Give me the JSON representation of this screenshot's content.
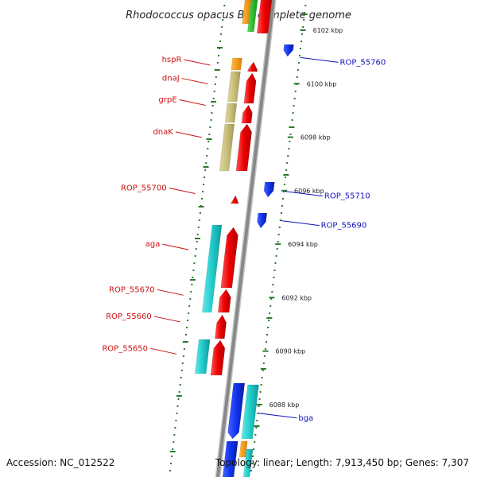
{
  "title": "Rhodococcus opacus B4, complete genome",
  "footer": {
    "accession": "Accession: NC_012522",
    "summary": "Topology: linear; Length: 7,913,450 bp; Genes: 7,307"
  },
  "ticks": [
    {
      "label": "6102 kbp",
      "kbp": 6102
    },
    {
      "label": "6100 kbp",
      "kbp": 6100
    },
    {
      "label": "6098 kbp",
      "kbp": 6098
    },
    {
      "label": "6096 kbp",
      "kbp": 6096
    },
    {
      "label": "6094 kbp",
      "kbp": 6094
    },
    {
      "label": "6092 kbp",
      "kbp": 6092
    },
    {
      "label": "6090 kbp",
      "kbp": 6090
    },
    {
      "label": "6088 kbp",
      "kbp": 6088
    }
  ],
  "left_labels": [
    {
      "name": "hspR",
      "kbp": 6100.9
    },
    {
      "name": "dnaJ",
      "kbp": 6100.2
    },
    {
      "name": "grpE",
      "kbp": 6099.4
    },
    {
      "name": "dnaK",
      "kbp": 6098.2
    },
    {
      "name": "ROP_55700",
      "kbp": 6096.1
    },
    {
      "name": "aga",
      "kbp": 6094.0
    },
    {
      "name": "ROP_55670",
      "kbp": 6092.3
    },
    {
      "name": "ROP_55660",
      "kbp": 6091.3
    },
    {
      "name": "ROP_55650",
      "kbp": 6090.1
    }
  ],
  "right_labels": [
    {
      "name": "ROP_55760",
      "kbp": 6100.8
    },
    {
      "name": "ROP_55710",
      "kbp": 6095.8
    },
    {
      "name": "ROP_55690",
      "kbp": 6094.7
    },
    {
      "name": "bga",
      "kbp": 6087.5
    }
  ],
  "colors": {
    "red": "#ee1111",
    "blue": "#1133ee",
    "cyan": "#22cccc",
    "olive": "#c8bf7a",
    "orange": "#ff9900",
    "green": "#22bb22",
    "tick_green": "#2a7a2a",
    "backbone": "#888888"
  }
}
